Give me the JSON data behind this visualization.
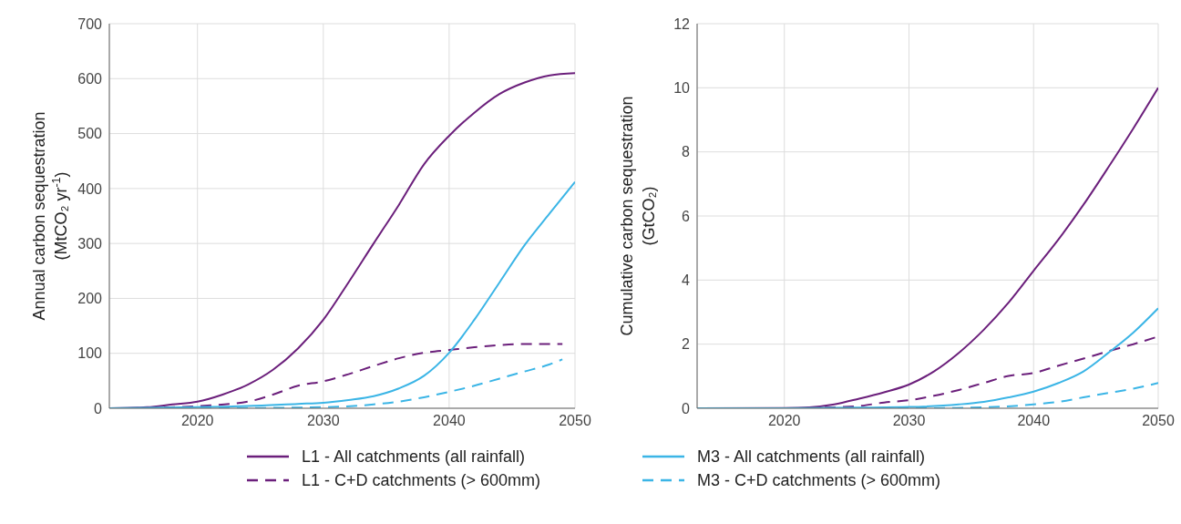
{
  "chart_data": [
    {
      "type": "line",
      "ylabel": "Annual carbon sequestration\n(MtCO₂ yr$^{-1}$)",
      "xlim": [
        2013,
        2050
      ],
      "xticks": [
        2020,
        2030,
        2040,
        2050
      ],
      "ylim": [
        0,
        700
      ],
      "yticks": [
        0,
        100,
        200,
        300,
        400,
        500,
        600,
        700
      ],
      "grid": true,
      "legend": "bottom",
      "marker": "none",
      "series": [
        {
          "name": "L1 - All catchments (all rainfall)",
          "color": "#6b1f7b",
          "line_style": "solid",
          "x": [
            2013,
            2016,
            2018,
            2020,
            2022,
            2024,
            2026,
            2028,
            2030,
            2032,
            2034,
            2036,
            2038,
            2040,
            2042,
            2044,
            2046,
            2048,
            2050
          ],
          "values": [
            0,
            2,
            7,
            12,
            25,
            43,
            70,
            109,
            161,
            229,
            300,
            370,
            444,
            496,
            538,
            572,
            593,
            606,
            610
          ]
        },
        {
          "name": "L1 - C+D catchments (> 600mm)",
          "color": "#6b1f7b",
          "line_style": "dashed",
          "x": [
            2013,
            2017,
            2020,
            2024,
            2026,
            2028,
            2030,
            2032,
            2034,
            2036,
            2038,
            2040,
            2042,
            2044,
            2046,
            2049
          ],
          "values": [
            0,
            1,
            4,
            12,
            25,
            41,
            49,
            62,
            77,
            91,
            101,
            106,
            111,
            115,
            117,
            117
          ]
        },
        {
          "name": "M3 - All catchments (all rainfall)",
          "color": "#3bb5e6",
          "line_style": "solid",
          "x": [
            2013,
            2020,
            2024,
            2028,
            2030,
            2032,
            2034,
            2036,
            2038,
            2040,
            2042,
            2044,
            2046,
            2048,
            2050
          ],
          "values": [
            0,
            2,
            4,
            8,
            10,
            15,
            22,
            36,
            59,
            101,
            161,
            229,
            297,
            355,
            412
          ]
        },
        {
          "name": "M3 - C+D catchments (> 600mm)",
          "color": "#3bb5e6",
          "line_style": "dashed",
          "x": [
            2013,
            2020,
            2030,
            2034,
            2036,
            2038,
            2040,
            2042,
            2044,
            2046,
            2048,
            2049
          ],
          "values": [
            0,
            0,
            2,
            7,
            12,
            20,
            30,
            41,
            54,
            67,
            80,
            89
          ]
        }
      ]
    },
    {
      "type": "line",
      "ylabel": "Cumulative carbon sequestration\n(GtCO₂)",
      "xlim": [
        2013,
        2050
      ],
      "xticks": [
        2020,
        2030,
        2040,
        2050
      ],
      "ylim": [
        0,
        12
      ],
      "yticks": [
        0,
        2,
        4,
        6,
        8,
        10,
        12
      ],
      "grid": true,
      "marker": "none",
      "series": [
        {
          "color": "#6b1f7b",
          "line_style": "solid",
          "x": [
            2013,
            2020,
            2022,
            2024,
            2026,
            2028,
            2030,
            2032,
            2034,
            2036,
            2038,
            2040,
            2042,
            2044,
            2046,
            2048,
            2050
          ],
          "values": [
            0,
            0.01,
            0.03,
            0.12,
            0.3,
            0.5,
            0.74,
            1.15,
            1.73,
            2.45,
            3.3,
            4.29,
            5.27,
            6.35,
            7.52,
            8.73,
            10.0
          ]
        },
        {
          "color": "#6b1f7b",
          "line_style": "dashed",
          "x": [
            2013,
            2020,
            2024,
            2026,
            2028,
            2030,
            2032,
            2034,
            2036,
            2038,
            2040,
            2042,
            2044,
            2046,
            2048,
            2050
          ],
          "values": [
            0,
            0,
            0.03,
            0.07,
            0.18,
            0.25,
            0.39,
            0.57,
            0.79,
            1.01,
            1.1,
            1.33,
            1.55,
            1.78,
            2.0,
            2.24
          ]
        },
        {
          "color": "#3bb5e6",
          "line_style": "solid",
          "x": [
            2013,
            2020,
            2026,
            2030,
            2034,
            2036,
            2038,
            2040,
            2042,
            2044,
            2046,
            2048,
            2050
          ],
          "values": [
            0,
            0,
            0.02,
            0.04,
            0.12,
            0.2,
            0.34,
            0.52,
            0.79,
            1.15,
            1.73,
            2.36,
            3.12
          ]
        },
        {
          "color": "#3bb5e6",
          "line_style": "dashed",
          "x": [
            2013,
            2030,
            2036,
            2040,
            2042,
            2044,
            2046,
            2048,
            2050
          ],
          "values": [
            0,
            0,
            0.03,
            0.12,
            0.2,
            0.34,
            0.48,
            0.61,
            0.79
          ]
        }
      ]
    }
  ]
}
